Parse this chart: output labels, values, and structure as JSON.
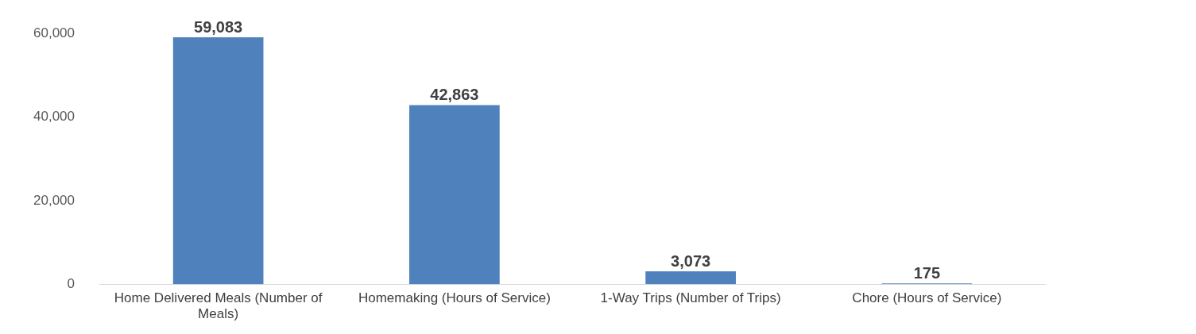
{
  "chart_data": {
    "type": "bar",
    "categories": [
      "Home Delivered Meals (Number of Meals)",
      "Homemaking (Hours of Service)",
      "1-Way Trips (Number of Trips)",
      "Chore (Hours of Service)"
    ],
    "values": [
      59083,
      42863,
      3073,
      175
    ],
    "color": "#4f81bd",
    "value_labels": [
      "59,083",
      "42,863",
      "3,073",
      "175"
    ],
    "ylim": [
      0,
      60000
    ],
    "yticks": [
      0,
      {
        "value": 20000,
        "label": "20,000"
      },
      {
        "value": 40000,
        "label": "40,000"
      },
      {
        "value": 60000,
        "label": "60,000"
      }
    ],
    "grid": false
  }
}
